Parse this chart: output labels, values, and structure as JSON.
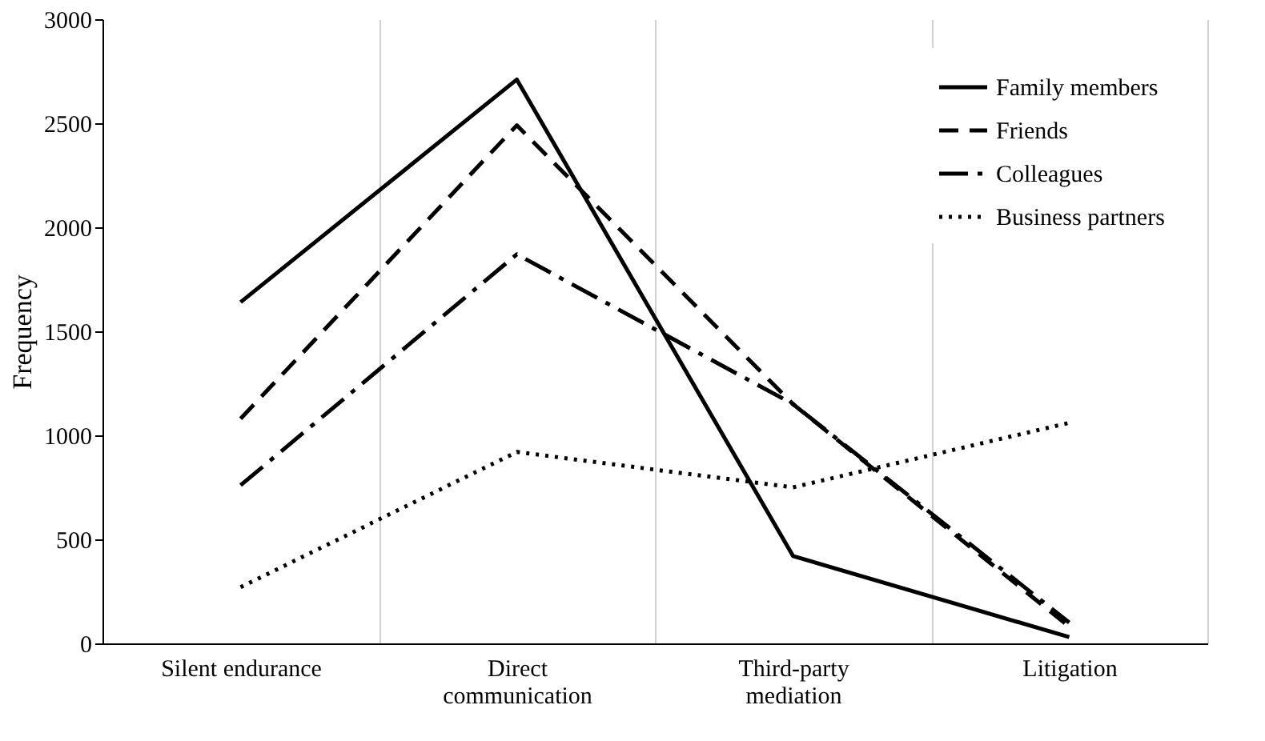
{
  "chart_data": {
    "type": "line",
    "ylabel": "Frequency",
    "categories": [
      "Silent endurance",
      "Direct\ncommunication",
      "Third-party\nmediation",
      "Litigation"
    ],
    "series": [
      {
        "name": "Family members",
        "color": "#000000",
        "line_style": "solid",
        "values": [
          1640,
          2710,
          420,
          30
        ]
      },
      {
        "name": "Friends",
        "color": "#000000",
        "line_style": "dashed",
        "values": [
          1080,
          2490,
          1150,
          80
        ]
      },
      {
        "name": "Colleagues",
        "color": "#000000",
        "line_style": "dashdot",
        "values": [
          760,
          1870,
          1150,
          100
        ]
      },
      {
        "name": "Business partners",
        "color": "#000000",
        "line_style": "dotted",
        "values": [
          270,
          920,
          750,
          1060
        ]
      }
    ],
    "ylim": [
      0,
      3000
    ],
    "yticks": [
      0,
      500,
      1000,
      1500,
      2000,
      2500,
      3000
    ],
    "grid": "x",
    "legend": "top right",
    "marker": "none"
  }
}
